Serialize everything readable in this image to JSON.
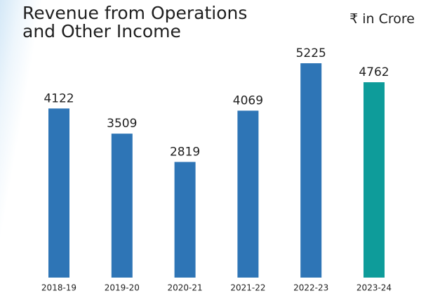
{
  "chart_data": {
    "type": "bar",
    "title": "Revenue from Operations\nand Other Income",
    "subtitle": "₹ in Crore",
    "categories": [
      "2018-19",
      "2019-20",
      "2020-21",
      "2021-22",
      "2022-23",
      "2023-24"
    ],
    "values": [
      4122,
      3509,
      2819,
      4069,
      5225,
      4762
    ],
    "colors": [
      "#2e75b6",
      "#2e75b6",
      "#2e75b6",
      "#2e75b6",
      "#2e75b6",
      "#0e9c9a"
    ]
  }
}
